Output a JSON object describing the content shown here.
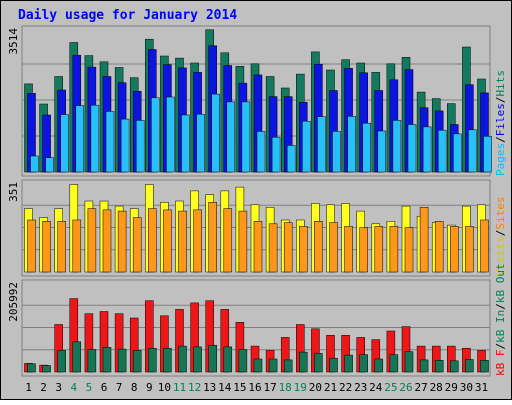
{
  "chart_data": {
    "type": "bar",
    "title": "Daily usage for January 2014",
    "categories": [
      "1",
      "2",
      "3",
      "4",
      "5",
      "6",
      "7",
      "8",
      "9",
      "10",
      "11",
      "12",
      "13",
      "14",
      "15",
      "16",
      "17",
      "18",
      "19",
      "20",
      "21",
      "22",
      "23",
      "24",
      "25",
      "26",
      "27",
      "28",
      "29",
      "30",
      "31"
    ],
    "weekend_days": [
      "4",
      "5",
      "11",
      "12",
      "18",
      "19",
      "25",
      "26"
    ],
    "panels": [
      {
        "id": "pages-files-hits",
        "ymax_label": "3514",
        "ymax": 3514,
        "legend": [
          {
            "text": "Pages",
            "color": "#00c0ff"
          },
          {
            "text": "/",
            "color": "#000000"
          },
          {
            "text": "Files",
            "color": "#0000ff"
          },
          {
            "text": "/",
            "color": "#000000"
          },
          {
            "text": "Hits",
            "color": "#00805c"
          }
        ],
        "series": [
          {
            "name": "Hits",
            "color": "#137a5e",
            "values": [
              2150,
              1660,
              2330,
              3160,
              2840,
              2690,
              2550,
              2300,
              3240,
              2830,
              2780,
              2660,
              3470,
              2910,
              2580,
              2640,
              2330,
              2050,
              2390,
              2930,
              2490,
              2740,
              2660,
              2430,
              2640,
              2800,
              1950,
              1790,
              1670,
              3050,
              2270
            ]
          },
          {
            "name": "Files",
            "color": "#0b14e0",
            "values": [
              1920,
              1390,
              2000,
              2850,
              2560,
              2330,
              2180,
              1970,
              2990,
              2620,
              2540,
              2430,
              3080,
              2600,
              2170,
              2370,
              1840,
              1840,
              1700,
              2630,
              1990,
              2530,
              2420,
              1990,
              2250,
              2500,
              1570,
              1490,
              1160,
              2130,
              1930
            ]
          },
          {
            "name": "Pages",
            "color": "#28c0f8",
            "values": [
              390,
              350,
              1400,
              1620,
              1630,
              1480,
              1290,
              1260,
              1810,
              1830,
              1390,
              1410,
              1900,
              1710,
              1710,
              990,
              850,
              650,
              1240,
              1350,
              990,
              1360,
              1190,
              1000,
              1260,
              1160,
              1100,
              1020,
              930,
              1030,
              870
            ]
          }
        ]
      },
      {
        "id": "visits-sites",
        "ymax_label": "351",
        "ymax": 351,
        "legend": [
          {
            "text": "Visits",
            "color": "#d4c800"
          },
          {
            "text": "/",
            "color": "#000000"
          },
          {
            "text": "Sites",
            "color": "#ff8000"
          }
        ],
        "series": [
          {
            "name": "Visits",
            "color": "#ffff20",
            "values": [
              250,
              215,
              250,
              345,
              280,
              280,
              260,
              250,
              345,
              275,
              280,
              320,
              305,
              320,
              335,
              265,
              255,
              205,
              205,
              270,
              265,
              270,
              240,
              190,
              200,
              260,
              220,
              195,
              185,
              260,
              265
            ]
          },
          {
            "name": "Sites",
            "color": "#ff9818",
            "values": [
              205,
              200,
              200,
              205,
              250,
              245,
              240,
              215,
              250,
              245,
              240,
              245,
              275,
              250,
              240,
              200,
              190,
              195,
              180,
              200,
              195,
              180,
              175,
              180,
              180,
              175,
              255,
              200,
              180,
              180,
              205
            ]
          }
        ]
      },
      {
        "id": "kb-in-out-f",
        "ymax_label": "205992",
        "ymax": 205992,
        "legend": [
          {
            "text": "kB F",
            "color": "#ff0000"
          },
          {
            "text": "/",
            "color": "#000000"
          },
          {
            "text": "kB In",
            "color": "#00805c"
          },
          {
            "text": "/",
            "color": "#000000"
          },
          {
            "text": "kB Out",
            "color": "#00805c"
          }
        ],
        "series": [
          {
            "name": "kB F",
            "color": "#ee1616",
            "values": [
              20000,
              16000,
              110000,
              170000,
              135000,
              140000,
              135000,
              125000,
              165000,
              130000,
              145000,
              160000,
              165000,
              145000,
              115000,
              60000,
              50000,
              80000,
              110000,
              100000,
              85000,
              85000,
              80000,
              75000,
              95000,
              105000,
              60000,
              60000,
              60000,
              55000,
              50000
            ]
          },
          {
            "name": "kB In",
            "color": "#157554",
            "values": [
              19000,
              15000,
              50000,
              70000,
              52000,
              57000,
              53000,
              50000,
              55000,
              55000,
              60000,
              58000,
              62000,
              58000,
              52000,
              30000,
              30000,
              28000,
              46000,
              43000,
              32000,
              39000,
              40000,
              30000,
              40000,
              47000,
              28000,
              27000,
              26000,
              29000,
              27000
            ]
          }
        ]
      }
    ]
  }
}
